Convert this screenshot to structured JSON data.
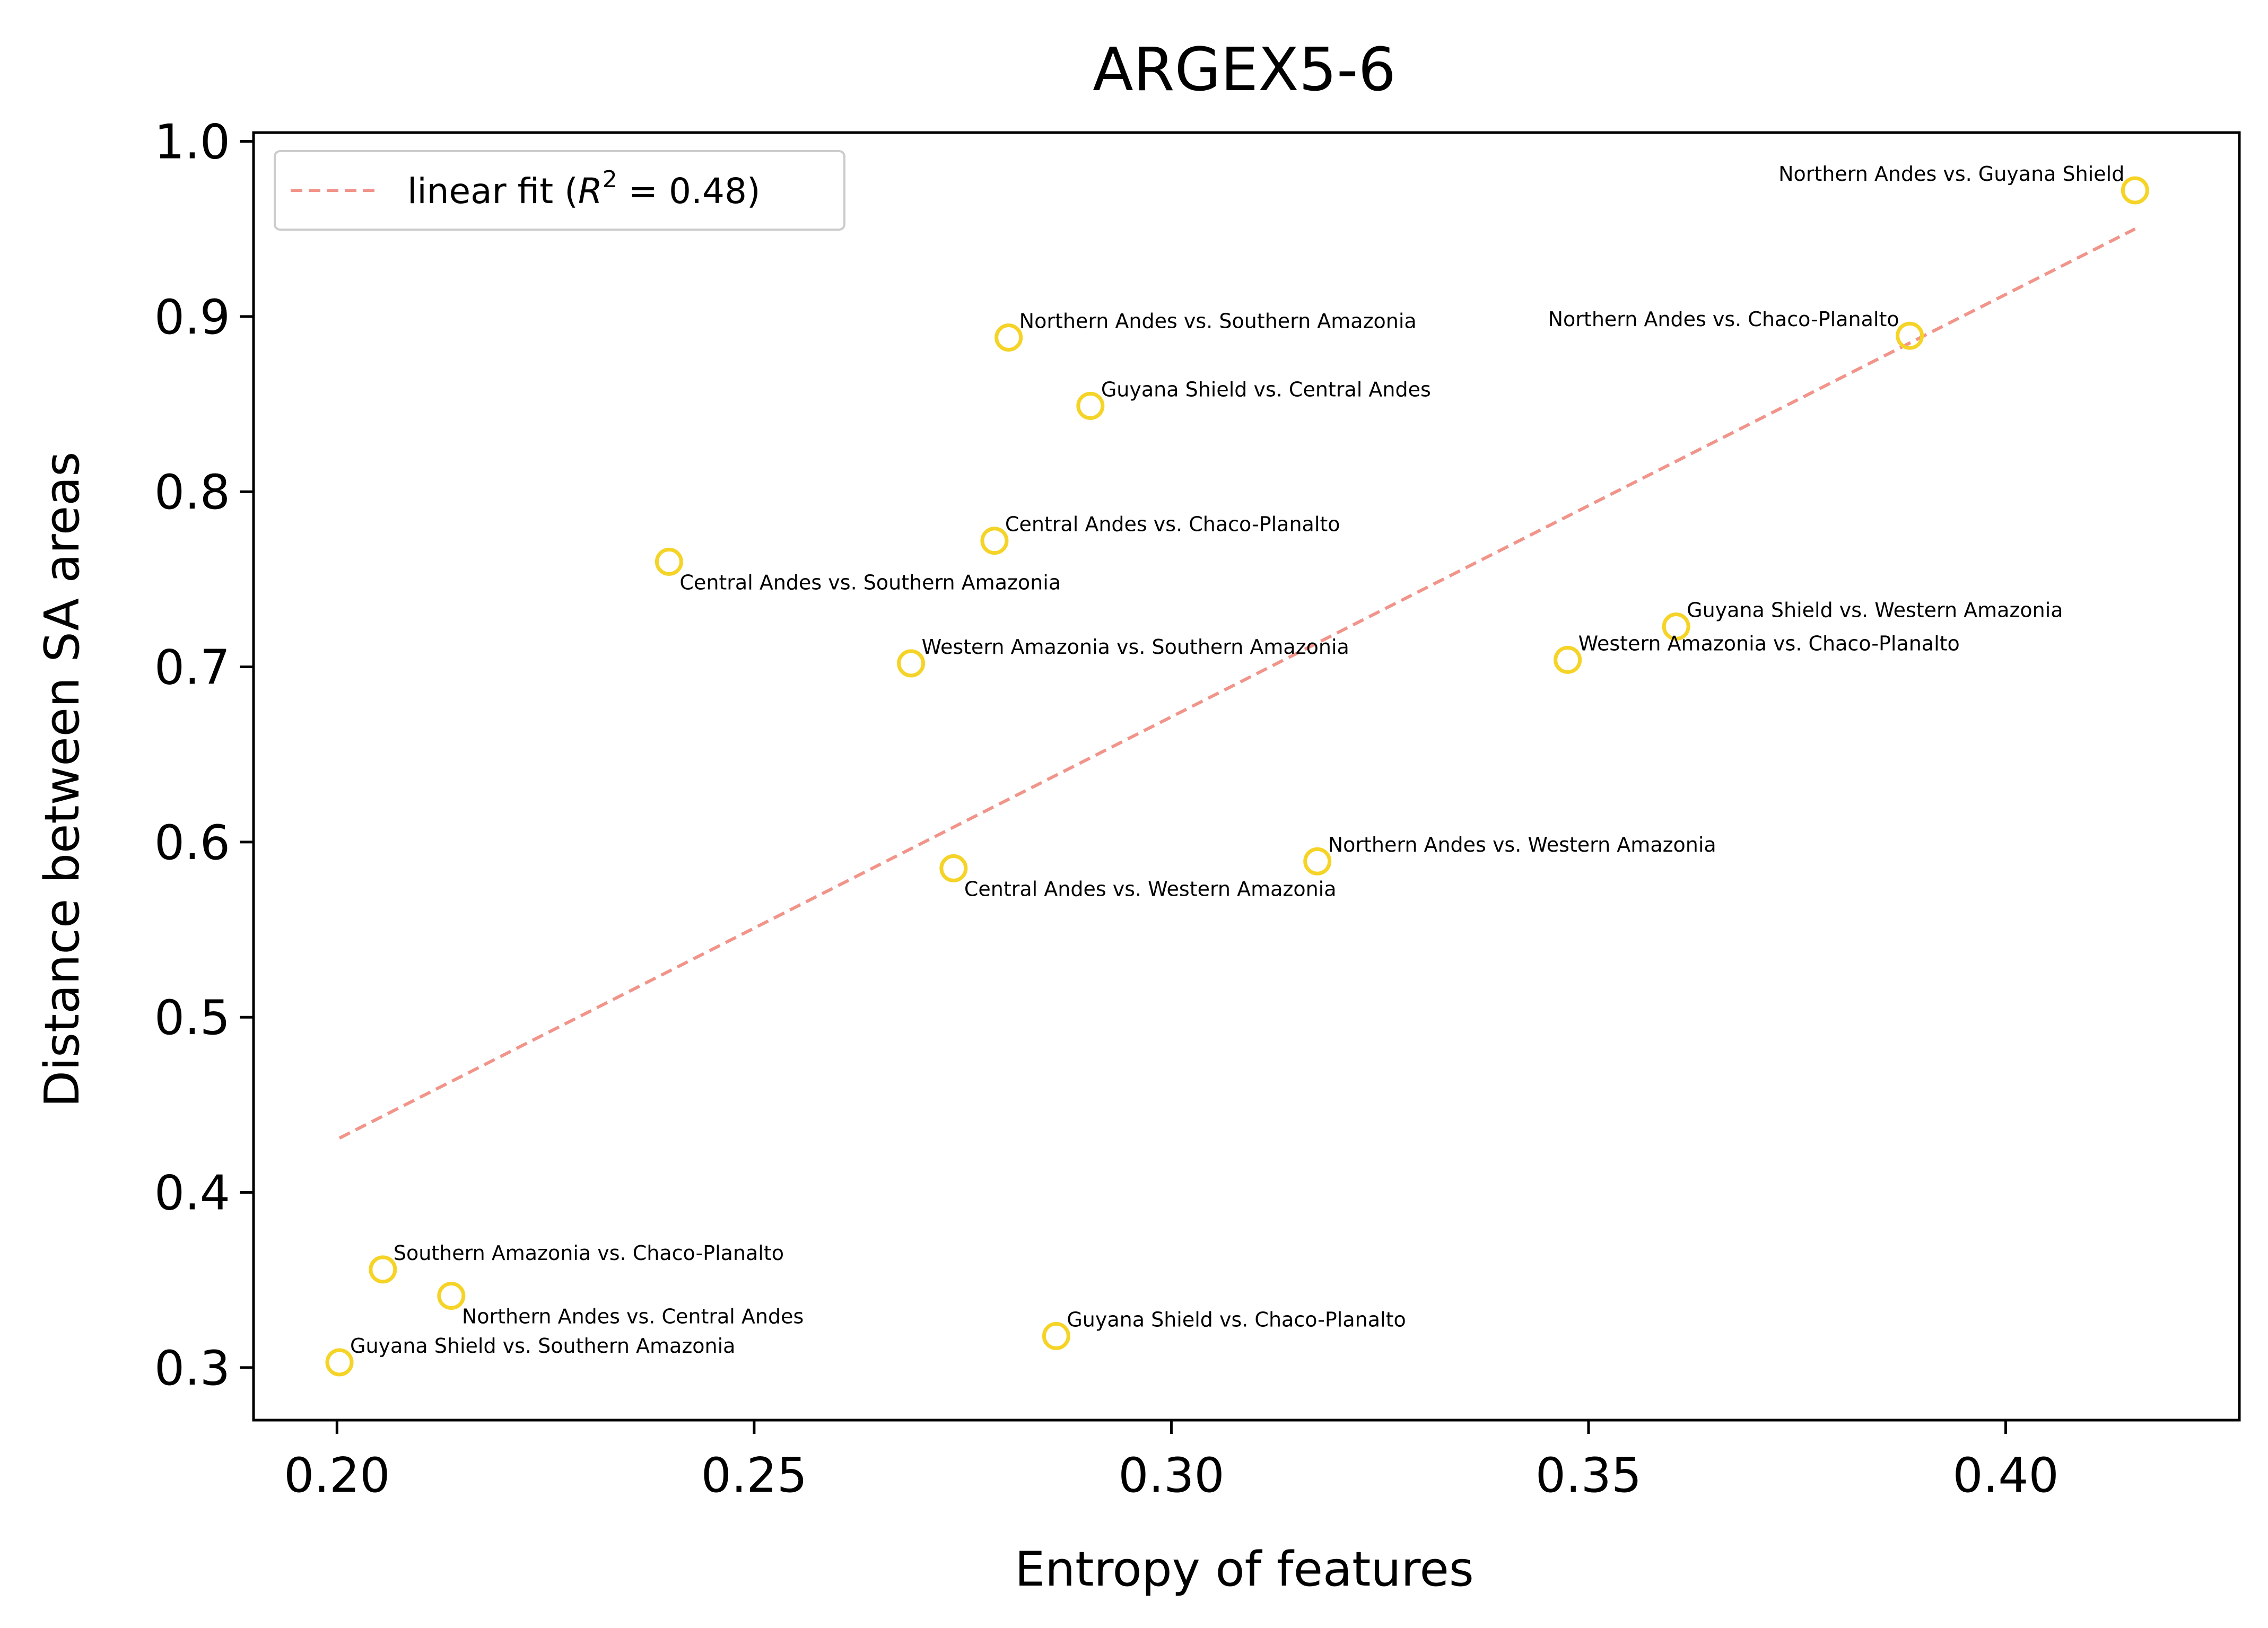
{
  "chart_data": {
    "type": "scatter",
    "title": "ARGEX5-6",
    "xlabel": "Entropy of features",
    "ylabel": "Distance between SA areas",
    "xlim": [
      0.19,
      0.428
    ],
    "ylim": [
      0.27,
      1.005
    ],
    "xticks": [
      0.2,
      0.25,
      0.3,
      0.35,
      0.4
    ],
    "xtick_labels": [
      "0.20",
      "0.25",
      "0.30",
      "0.35",
      "0.40"
    ],
    "yticks": [
      0.3,
      0.4,
      0.5,
      0.6,
      0.7,
      0.8,
      0.9,
      1.0
    ],
    "ytick_labels": [
      "0.3",
      "0.4",
      "0.5",
      "0.6",
      "0.7",
      "0.8",
      "0.9",
      "1.0"
    ],
    "grid": false,
    "legend": {
      "placement": "upper-left",
      "entries": [
        {
          "label_prefix": "linear fit (",
          "label_var": "R",
          "label_sup": "2",
          "label_suffix": " = 0.48)",
          "style": "dashed",
          "color": "#f1948a"
        }
      ]
    },
    "marker_color": "#f5d327",
    "fit_color": "#f1948a",
    "points": [
      {
        "x": 0.2003,
        "y": 0.303,
        "label": "Guyana Shield vs. Southern Amazonia",
        "label_pos": "above-right"
      },
      {
        "x": 0.2055,
        "y": 0.356,
        "label": "Southern Amazonia vs. Chaco-Planalto",
        "label_pos": "above-right"
      },
      {
        "x": 0.2137,
        "y": 0.341,
        "label": "Northern Andes vs. Central Andes",
        "label_pos": "below-right"
      },
      {
        "x": 0.2398,
        "y": 0.76,
        "label": "Central Andes vs. Southern Amazonia",
        "label_pos": "below-right"
      },
      {
        "x": 0.2688,
        "y": 0.702,
        "label": "Western Amazonia vs. Southern Amazonia",
        "label_pos": "above-right"
      },
      {
        "x": 0.2739,
        "y": 0.585,
        "label": "Central Andes vs. Western Amazonia",
        "label_pos": "below-right"
      },
      {
        "x": 0.2788,
        "y": 0.772,
        "label": "Central Andes vs. Chaco-Planalto",
        "label_pos": "above-right"
      },
      {
        "x": 0.2805,
        "y": 0.888,
        "label": "Northern Andes vs. Southern Amazonia",
        "label_pos": "above-right"
      },
      {
        "x": 0.2862,
        "y": 0.318,
        "label": "Guyana Shield vs. Chaco-Planalto",
        "label_pos": "above-right"
      },
      {
        "x": 0.2903,
        "y": 0.849,
        "label": "Guyana Shield vs. Central Andes",
        "label_pos": "above-right"
      },
      {
        "x": 0.3175,
        "y": 0.589,
        "label": "Northern Andes vs. Western Amazonia",
        "label_pos": "above-right"
      },
      {
        "x": 0.3475,
        "y": 0.704,
        "label": "Western Amazonia vs. Chaco-Planalto",
        "label_pos": "above-right"
      },
      {
        "x": 0.3605,
        "y": 0.723,
        "label": "Guyana Shield vs. Western Amazonia",
        "label_pos": "above-right"
      },
      {
        "x": 0.3885,
        "y": 0.889,
        "label": "Northern Andes vs. Chaco-Planalto",
        "label_pos": "above-left"
      },
      {
        "x": 0.4155,
        "y": 0.972,
        "label": "Northern Andes vs. Guyana Shield",
        "label_pos": "above-left"
      }
    ],
    "fit_line": {
      "x": [
        0.2003,
        0.4155
      ],
      "y": [
        0.431,
        0.95
      ]
    }
  }
}
